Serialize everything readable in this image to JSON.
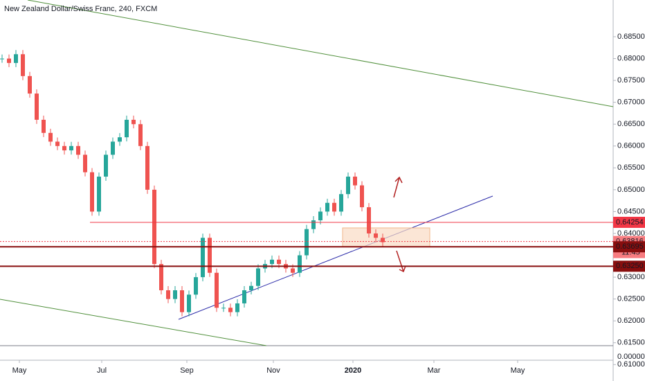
{
  "header": {
    "title": "New Zealand Dollar/Swiss Franc, 240, FXCM"
  },
  "chart_data": {
    "type": "candle-path",
    "values": [
      0.68,
      0.679,
      0.681,
      0.676,
      0.672,
      0.666,
      0.663,
      0.661,
      0.66,
      0.659,
      0.66,
      0.658,
      0.654,
      0.645,
      0.653,
      0.658,
      0.661,
      0.662,
      0.666,
      0.665,
      0.66,
      0.65,
      0.633,
      0.627,
      0.625,
      0.627,
      0.622,
      0.626,
      0.63,
      0.639,
      0.631,
      0.623,
      0.623,
      0.622,
      0.624,
      0.627,
      0.628,
      0.632,
      0.633,
      0.634,
      0.633,
      0.632,
      0.631,
      0.635,
      0.641,
      0.643,
      0.645,
      0.647,
      0.645,
      0.649,
      0.653,
      0.651,
      0.646,
      0.64,
      0.639,
      0.638
    ],
    "up_color": "#26a69a",
    "down_color": "#ef5350",
    "ylim": [
      0.6934,
      0.611
    ],
    "yticks": [
      {
        "value": 0.685,
        "label": "0.68500"
      },
      {
        "value": 0.68,
        "label": "0.68000"
      },
      {
        "value": 0.675,
        "label": "0.67500"
      },
      {
        "value": 0.67,
        "label": "0.67000"
      },
      {
        "value": 0.665,
        "label": "0.66500"
      },
      {
        "value": 0.66,
        "label": "0.66000"
      },
      {
        "value": 0.655,
        "label": "0.65500"
      },
      {
        "value": 0.65,
        "label": "0.65000"
      },
      {
        "value": 0.645,
        "label": "0.64500"
      },
      {
        "value": 0.64,
        "label": "0.64000"
      },
      {
        "value": 0.635,
        "label": "0.63500"
      },
      {
        "value": 0.63,
        "label": "0.63000"
      },
      {
        "value": 0.625,
        "label": "0.62500"
      },
      {
        "value": 0.62,
        "label": "0.62000"
      },
      {
        "value": 0.615,
        "label": "0.61500"
      },
      {
        "value": 0.61,
        "label": "0.61000"
      }
    ],
    "xticks": [
      "May",
      "Jul",
      "Sep",
      "Nov",
      "2020",
      "Mar",
      "May"
    ],
    "price_tags": [
      {
        "value": 0.64254,
        "label": "0.64254"
      },
      {
        "value": 0.63816,
        "label": "0.63816"
      },
      {
        "value": 0.63695,
        "label": "0.63695"
      },
      {
        "value": 0.6325,
        "label": "0.63250"
      }
    ],
    "countdown": "11:45",
    "bottom_scale_label": "0.00000"
  }
}
